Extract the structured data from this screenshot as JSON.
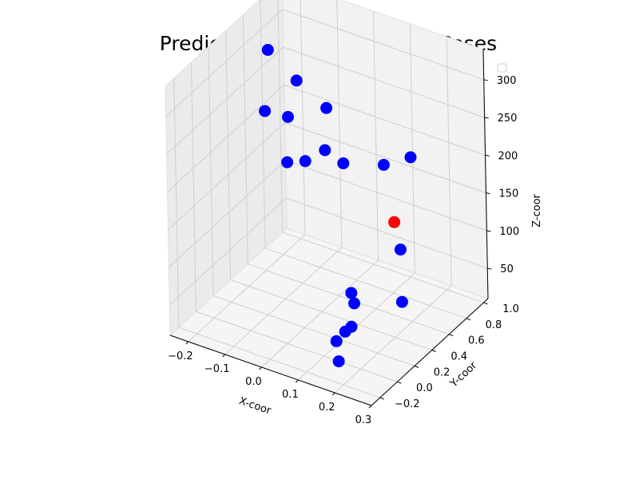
{
  "chart_data": {
    "type": "scatter",
    "title": "Predicted and Ground Truth Poses",
    "xlabel": "X-coor",
    "ylabel": "Y-coor",
    "zlabel": "Z-coor",
    "x_ticks": [
      "−0.2",
      "−0.1",
      "0.0",
      "0.1",
      "0.2",
      "0.3"
    ],
    "y_ticks": [
      "−0.2",
      "0.0",
      "0.2",
      "0.4",
      "0.6",
      "0.8",
      "1.0"
    ],
    "z_ticks": [
      "50",
      "100",
      "150",
      "200",
      "250",
      "300"
    ],
    "xlim": [
      -0.25,
      0.3
    ],
    "ylim": [
      -0.3,
      1.05
    ],
    "zlim": [
      10,
      340
    ],
    "legend": {
      "placement": "top-right",
      "entries": []
    },
    "grid": true,
    "series": [
      {
        "color": "#0000ff",
        "points": [
          {
            "x": -0.22,
            "y": 0.75,
            "z": 283
          },
          {
            "x": -0.2,
            "y": 0.62,
            "z": 219
          },
          {
            "x": -0.15,
            "y": 0.78,
            "z": 251
          },
          {
            "x": -0.12,
            "y": 0.55,
            "z": 232
          },
          {
            "x": -0.05,
            "y": 0.7,
            "z": 240
          },
          {
            "x": -0.1,
            "y": 0.45,
            "z": 186
          },
          {
            "x": -0.06,
            "y": 0.49,
            "z": 190
          },
          {
            "x": -0.02,
            "y": 0.55,
            "z": 205
          },
          {
            "x": 0.03,
            "y": 0.55,
            "z": 196
          },
          {
            "x": 0.1,
            "y": 0.72,
            "z": 188
          },
          {
            "x": 0.15,
            "y": 0.82,
            "z": 196
          },
          {
            "x": 0.19,
            "y": 0.52,
            "z": 112
          },
          {
            "x": 0.13,
            "y": 0.23,
            "z": 61
          },
          {
            "x": 0.12,
            "y": 0.24,
            "z": 72
          },
          {
            "x": 0.14,
            "y": 0.08,
            "z": 41
          },
          {
            "x": 0.15,
            "y": 0.11,
            "z": 46
          },
          {
            "x": 0.12,
            "y": 0.06,
            "z": 27
          },
          {
            "x": 0.14,
            "y": 0.0,
            "z": 10
          },
          {
            "x": 0.24,
            "y": 0.32,
            "z": 72
          }
        ]
      },
      {
        "color": "#ff0000",
        "points": [
          {
            "x": 0.15,
            "y": 0.62,
            "z": 131
          }
        ]
      }
    ]
  }
}
